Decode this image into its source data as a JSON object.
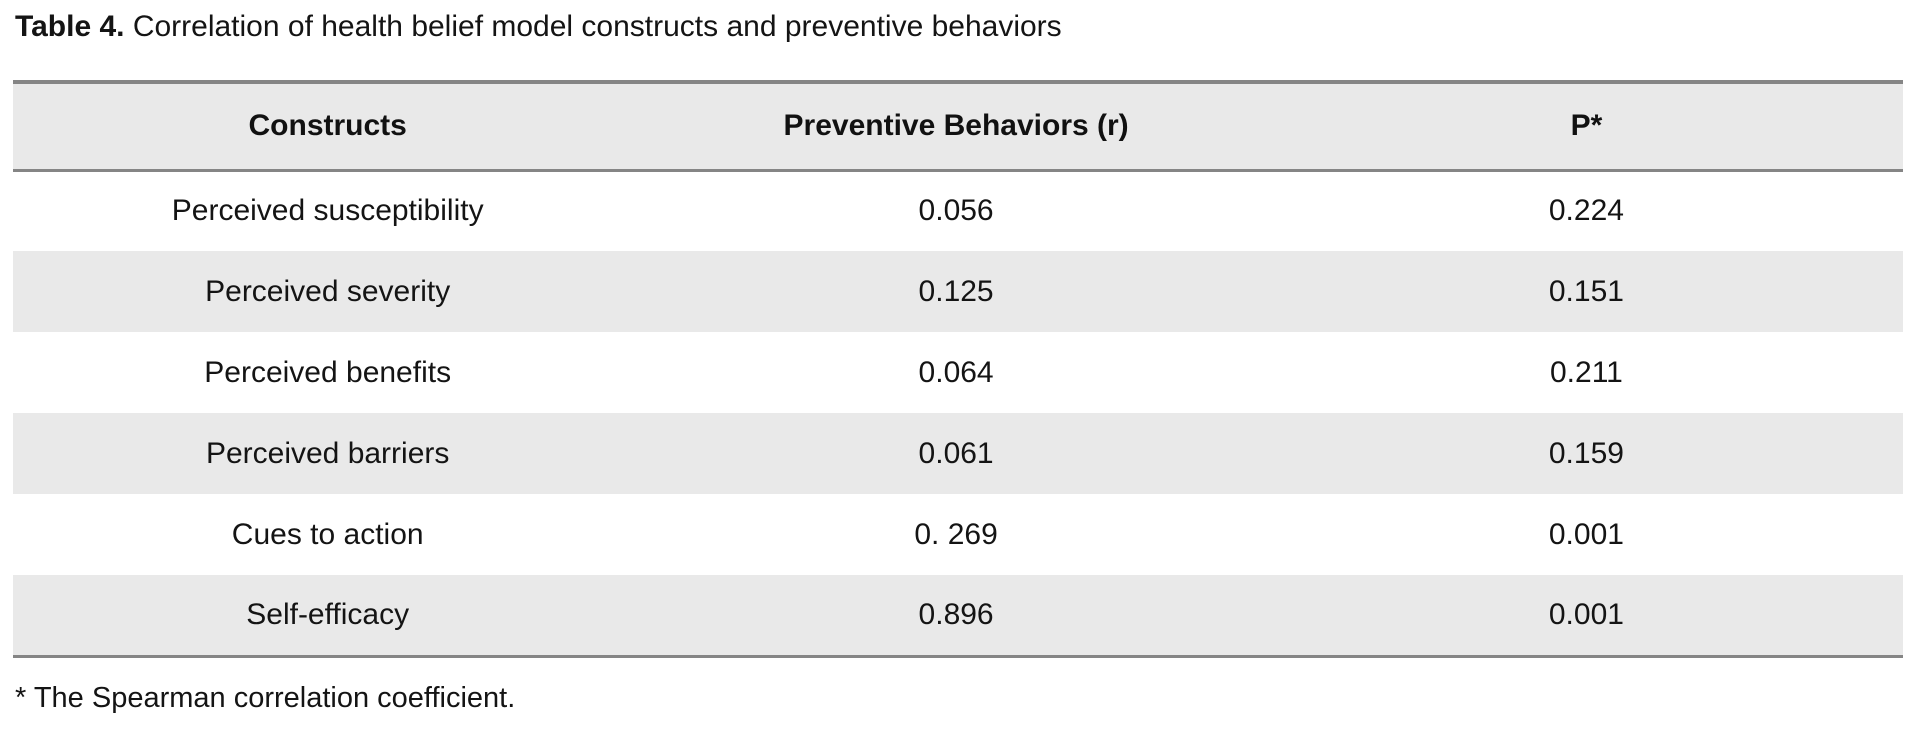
{
  "caption": {
    "label": "Table 4.",
    "text": " Correlation of health belief model constructs and preventive behaviors"
  },
  "table": {
    "columns": {
      "constructs": "Constructs",
      "r": "Preventive Behaviors (r)",
      "p": "P*"
    },
    "rows": [
      {
        "construct": "Perceived susceptibility",
        "r": "0.056",
        "p": "0.224"
      },
      {
        "construct": "Perceived severity",
        "r": "0.125",
        "p": "0.151"
      },
      {
        "construct": "Perceived benefits",
        "r": "0.064",
        "p": "0.211"
      },
      {
        "construct": "Perceived barriers",
        "r": "0.061",
        "p": "0.159"
      },
      {
        "construct": "Cues to action",
        "r": "0. 269",
        "p": "0.001"
      },
      {
        "construct": "Self-efficacy",
        "r": "0.896",
        "p": "0.001"
      }
    ],
    "stripe_color": "#e9e9e9",
    "border_color": "#858585"
  },
  "footnote": "* The Spearman correlation coefficient."
}
